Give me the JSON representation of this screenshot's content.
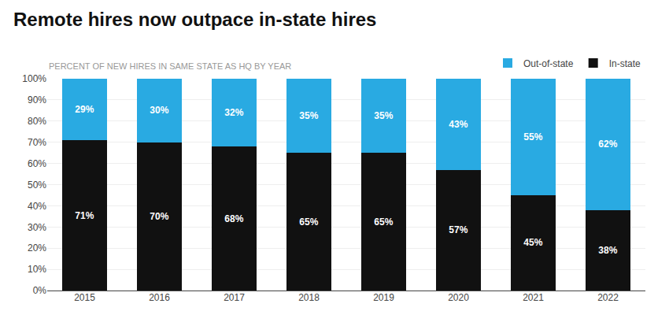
{
  "chart_data": {
    "type": "bar",
    "title": "Remote hires now outpace in-state hires",
    "subtitle": "PERCENT OF NEW HIRES IN SAME STATE AS HQ BY YEAR",
    "categories": [
      "2015",
      "2016",
      "2017",
      "2018",
      "2019",
      "2020",
      "2021",
      "2022"
    ],
    "stacked": true,
    "series": [
      {
        "name": "In-state",
        "color": "#111111",
        "values": [
          71,
          70,
          68,
          65,
          65,
          57,
          45,
          38
        ],
        "value_labels": [
          "71%",
          "70%",
          "68%",
          "65%",
          "65%",
          "57%",
          "45%",
          "38%"
        ]
      },
      {
        "name": "Out-of-state",
        "color": "#29aae2",
        "values": [
          29,
          30,
          32,
          35,
          35,
          43,
          55,
          62
        ],
        "value_labels": [
          "29%",
          "30%",
          "32%",
          "35%",
          "35%",
          "43%",
          "55%",
          "62%"
        ]
      }
    ],
    "data_labels": true,
    "ylim": [
      0,
      100
    ],
    "yticks": [
      {
        "value": 0,
        "label": "0%"
      },
      {
        "value": 10,
        "label": "10%"
      },
      {
        "value": 20,
        "label": "20%"
      },
      {
        "value": 30,
        "label": "30%"
      },
      {
        "value": 40,
        "label": "40%"
      },
      {
        "value": 50,
        "label": "50%"
      },
      {
        "value": 60,
        "label": "60%"
      },
      {
        "value": 70,
        "label": "70%"
      },
      {
        "value": 80,
        "label": "80%"
      },
      {
        "value": 90,
        "label": "90%"
      },
      {
        "value": 100,
        "label": "100%"
      }
    ],
    "grid": true,
    "legend": "top right"
  }
}
